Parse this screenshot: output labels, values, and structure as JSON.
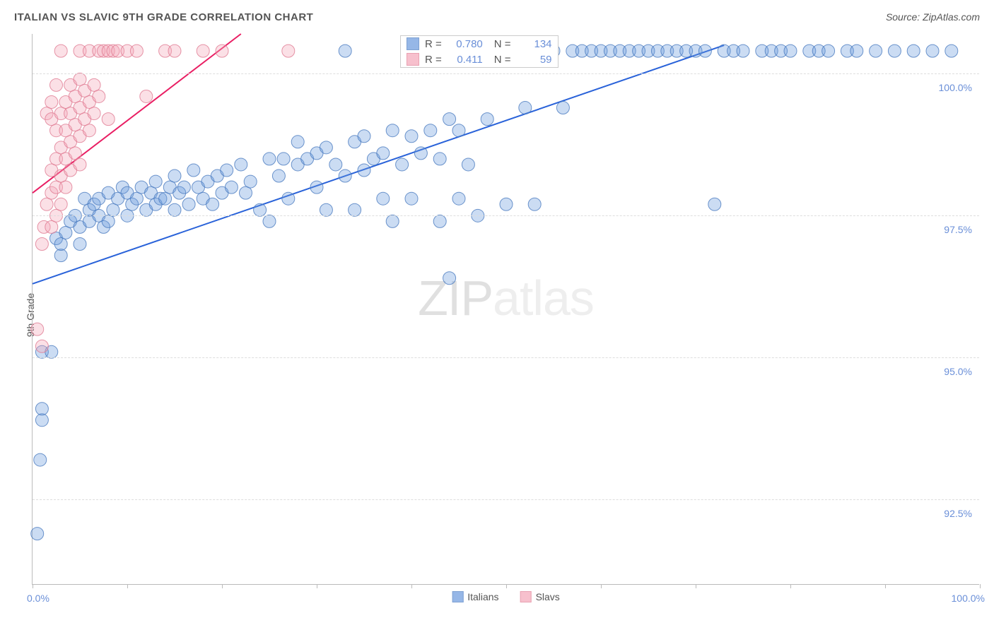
{
  "title": "ITALIAN VS SLAVIC 9TH GRADE CORRELATION CHART",
  "source": "Source: ZipAtlas.com",
  "watermark_zip": "ZIP",
  "watermark_atlas": "atlas",
  "y_label": "9th Grade",
  "chart": {
    "type": "scatter",
    "xlim": [
      0,
      100
    ],
    "ylim": [
      91.0,
      100.7
    ],
    "x_ticks": [
      0,
      10,
      20,
      30,
      40,
      50,
      60,
      70,
      80,
      90,
      100
    ],
    "y_gridlines": [
      92.5,
      95.0,
      97.5,
      100.0
    ],
    "y_tick_labels": [
      "92.5%",
      "95.0%",
      "97.5%",
      "100.0%"
    ],
    "x_min_label": "0.0%",
    "x_max_label": "100.0%",
    "background_color": "#ffffff",
    "grid_color": "#dddddd",
    "axis_color": "#bbbbbb",
    "marker_radius": 9,
    "marker_fill_opacity": 0.35,
    "marker_stroke_opacity": 0.8,
    "series": [
      {
        "name": "Italians",
        "color": "#6a9ade",
        "stroke": "#4a7abf",
        "trend_color": "#2962d9",
        "trend_width": 2,
        "trend_line": {
          "x1": 0,
          "y1": 96.3,
          "x2": 73,
          "y2": 100.5
        },
        "R_label": "R =",
        "R": "0.780",
        "N_label": "N =",
        "N": "134",
        "points": [
          [
            1,
            93.9
          ],
          [
            1,
            94.1
          ],
          [
            1,
            95.1
          ],
          [
            2,
            95.1
          ],
          [
            2.5,
            97.1
          ],
          [
            3,
            96.8
          ],
          [
            3,
            97.0
          ],
          [
            3.5,
            97.2
          ],
          [
            4,
            97.4
          ],
          [
            4.5,
            97.5
          ],
          [
            5,
            97.0
          ],
          [
            5,
            97.3
          ],
          [
            5.5,
            97.8
          ],
          [
            6,
            97.4
          ],
          [
            6,
            97.6
          ],
          [
            6.5,
            97.7
          ],
          [
            7,
            97.5
          ],
          [
            7,
            97.8
          ],
          [
            7.5,
            97.3
          ],
          [
            8,
            97.9
          ],
          [
            8,
            97.4
          ],
          [
            8.5,
            97.6
          ],
          [
            9,
            97.8
          ],
          [
            9.5,
            98.0
          ],
          [
            10,
            97.5
          ],
          [
            10,
            97.9
          ],
          [
            10.5,
            97.7
          ],
          [
            11,
            97.8
          ],
          [
            11.5,
            98.0
          ],
          [
            12,
            97.6
          ],
          [
            12.5,
            97.9
          ],
          [
            13,
            97.7
          ],
          [
            13,
            98.1
          ],
          [
            13.5,
            97.8
          ],
          [
            14,
            97.8
          ],
          [
            14.5,
            98.0
          ],
          [
            15,
            97.6
          ],
          [
            15,
            98.2
          ],
          [
            15.5,
            97.9
          ],
          [
            16,
            98.0
          ],
          [
            16.5,
            97.7
          ],
          [
            17,
            98.3
          ],
          [
            17.5,
            98.0
          ],
          [
            18,
            97.8
          ],
          [
            18.5,
            98.1
          ],
          [
            19,
            97.7
          ],
          [
            19.5,
            98.2
          ],
          [
            20,
            97.9
          ],
          [
            20.5,
            98.3
          ],
          [
            21,
            98.0
          ],
          [
            22,
            98.4
          ],
          [
            22.5,
            97.9
          ],
          [
            23,
            98.1
          ],
          [
            24,
            97.6
          ],
          [
            25,
            97.4
          ],
          [
            25,
            98.5
          ],
          [
            26,
            98.2
          ],
          [
            26.5,
            98.5
          ],
          [
            27,
            97.8
          ],
          [
            28,
            98.4
          ],
          [
            28,
            98.8
          ],
          [
            29,
            98.5
          ],
          [
            30,
            98.0
          ],
          [
            30,
            98.6
          ],
          [
            31,
            97.6
          ],
          [
            31,
            98.7
          ],
          [
            32,
            98.4
          ],
          [
            33,
            98.2
          ],
          [
            33,
            100.4
          ],
          [
            34,
            97.6
          ],
          [
            34,
            98.8
          ],
          [
            35,
            98.3
          ],
          [
            35,
            98.9
          ],
          [
            36,
            98.5
          ],
          [
            37,
            97.8
          ],
          [
            37,
            98.6
          ],
          [
            38,
            97.4
          ],
          [
            38,
            99.0
          ],
          [
            39,
            98.4
          ],
          [
            40,
            98.9
          ],
          [
            40,
            97.8
          ],
          [
            41,
            98.6
          ],
          [
            42,
            99.0
          ],
          [
            42,
            100.4
          ],
          [
            43,
            97.4
          ],
          [
            43,
            98.5
          ],
          [
            44,
            99.2
          ],
          [
            44,
            96.4
          ],
          [
            45,
            97.8
          ],
          [
            45,
            99.0
          ],
          [
            46,
            98.4
          ],
          [
            47,
            97.5
          ],
          [
            48,
            99.2
          ],
          [
            49,
            100.4
          ],
          [
            50,
            97.7
          ],
          [
            52,
            99.4
          ],
          [
            53,
            97.7
          ],
          [
            55,
            100.4
          ],
          [
            56,
            99.4
          ],
          [
            57,
            100.4
          ],
          [
            58,
            100.4
          ],
          [
            59,
            100.4
          ],
          [
            60,
            100.4
          ],
          [
            61,
            100.4
          ],
          [
            62,
            100.4
          ],
          [
            63,
            100.4
          ],
          [
            64,
            100.4
          ],
          [
            65,
            100.4
          ],
          [
            66,
            100.4
          ],
          [
            67,
            100.4
          ],
          [
            68,
            100.4
          ],
          [
            69,
            100.4
          ],
          [
            70,
            100.4
          ],
          [
            71,
            100.4
          ],
          [
            72,
            97.7
          ],
          [
            73,
            100.4
          ],
          [
            74,
            100.4
          ],
          [
            75,
            100.4
          ],
          [
            77,
            100.4
          ],
          [
            78,
            100.4
          ],
          [
            79,
            100.4
          ],
          [
            80,
            100.4
          ],
          [
            82,
            100.4
          ],
          [
            83,
            100.4
          ],
          [
            84,
            100.4
          ],
          [
            86,
            100.4
          ],
          [
            87,
            100.4
          ],
          [
            89,
            100.4
          ],
          [
            91,
            100.4
          ],
          [
            93,
            100.4
          ],
          [
            95,
            100.4
          ],
          [
            97,
            100.4
          ],
          [
            0.5,
            91.9
          ],
          [
            0.8,
            93.2
          ]
        ]
      },
      {
        "name": "Slavs",
        "color": "#f4a6b8",
        "stroke": "#e07a92",
        "trend_color": "#e91e63",
        "trend_width": 2,
        "trend_line": {
          "x1": 0,
          "y1": 97.9,
          "x2": 22,
          "y2": 100.7
        },
        "R_label": "R =",
        "R": "0.411",
        "N_label": "N =",
        "N": "59",
        "points": [
          [
            0.5,
            95.5
          ],
          [
            1,
            95.2
          ],
          [
            1,
            97.0
          ],
          [
            1.2,
            97.3
          ],
          [
            1.5,
            97.7
          ],
          [
            1.5,
            99.3
          ],
          [
            2,
            97.3
          ],
          [
            2,
            97.9
          ],
          [
            2,
            98.3
          ],
          [
            2,
            99.2
          ],
          [
            2,
            99.5
          ],
          [
            2.5,
            97.5
          ],
          [
            2.5,
            98.0
          ],
          [
            2.5,
            98.5
          ],
          [
            2.5,
            99.0
          ],
          [
            2.5,
            99.8
          ],
          [
            3,
            97.7
          ],
          [
            3,
            98.2
          ],
          [
            3,
            98.7
          ],
          [
            3,
            99.3
          ],
          [
            3,
            100.4
          ],
          [
            3.5,
            98.0
          ],
          [
            3.5,
            98.5
          ],
          [
            3.5,
            99.0
          ],
          [
            3.5,
            99.5
          ],
          [
            4,
            98.3
          ],
          [
            4,
            98.8
          ],
          [
            4,
            99.3
          ],
          [
            4,
            99.8
          ],
          [
            4.5,
            98.6
          ],
          [
            4.5,
            99.1
          ],
          [
            4.5,
            99.6
          ],
          [
            5,
            98.4
          ],
          [
            5,
            98.9
          ],
          [
            5,
            99.4
          ],
          [
            5,
            99.9
          ],
          [
            5,
            100.4
          ],
          [
            5.5,
            99.2
          ],
          [
            5.5,
            99.7
          ],
          [
            6,
            99.0
          ],
          [
            6,
            99.5
          ],
          [
            6,
            100.4
          ],
          [
            6.5,
            99.3
          ],
          [
            6.5,
            99.8
          ],
          [
            7,
            99.6
          ],
          [
            7,
            100.4
          ],
          [
            7.5,
            100.4
          ],
          [
            8,
            99.2
          ],
          [
            8,
            100.4
          ],
          [
            8.5,
            100.4
          ],
          [
            9,
            100.4
          ],
          [
            10,
            100.4
          ],
          [
            11,
            100.4
          ],
          [
            12,
            99.6
          ],
          [
            14,
            100.4
          ],
          [
            15,
            100.4
          ],
          [
            18,
            100.4
          ],
          [
            20,
            100.4
          ],
          [
            27,
            100.4
          ]
        ]
      }
    ],
    "legend": {
      "italians_label": "Italians",
      "slavs_label": "Slavs"
    }
  }
}
